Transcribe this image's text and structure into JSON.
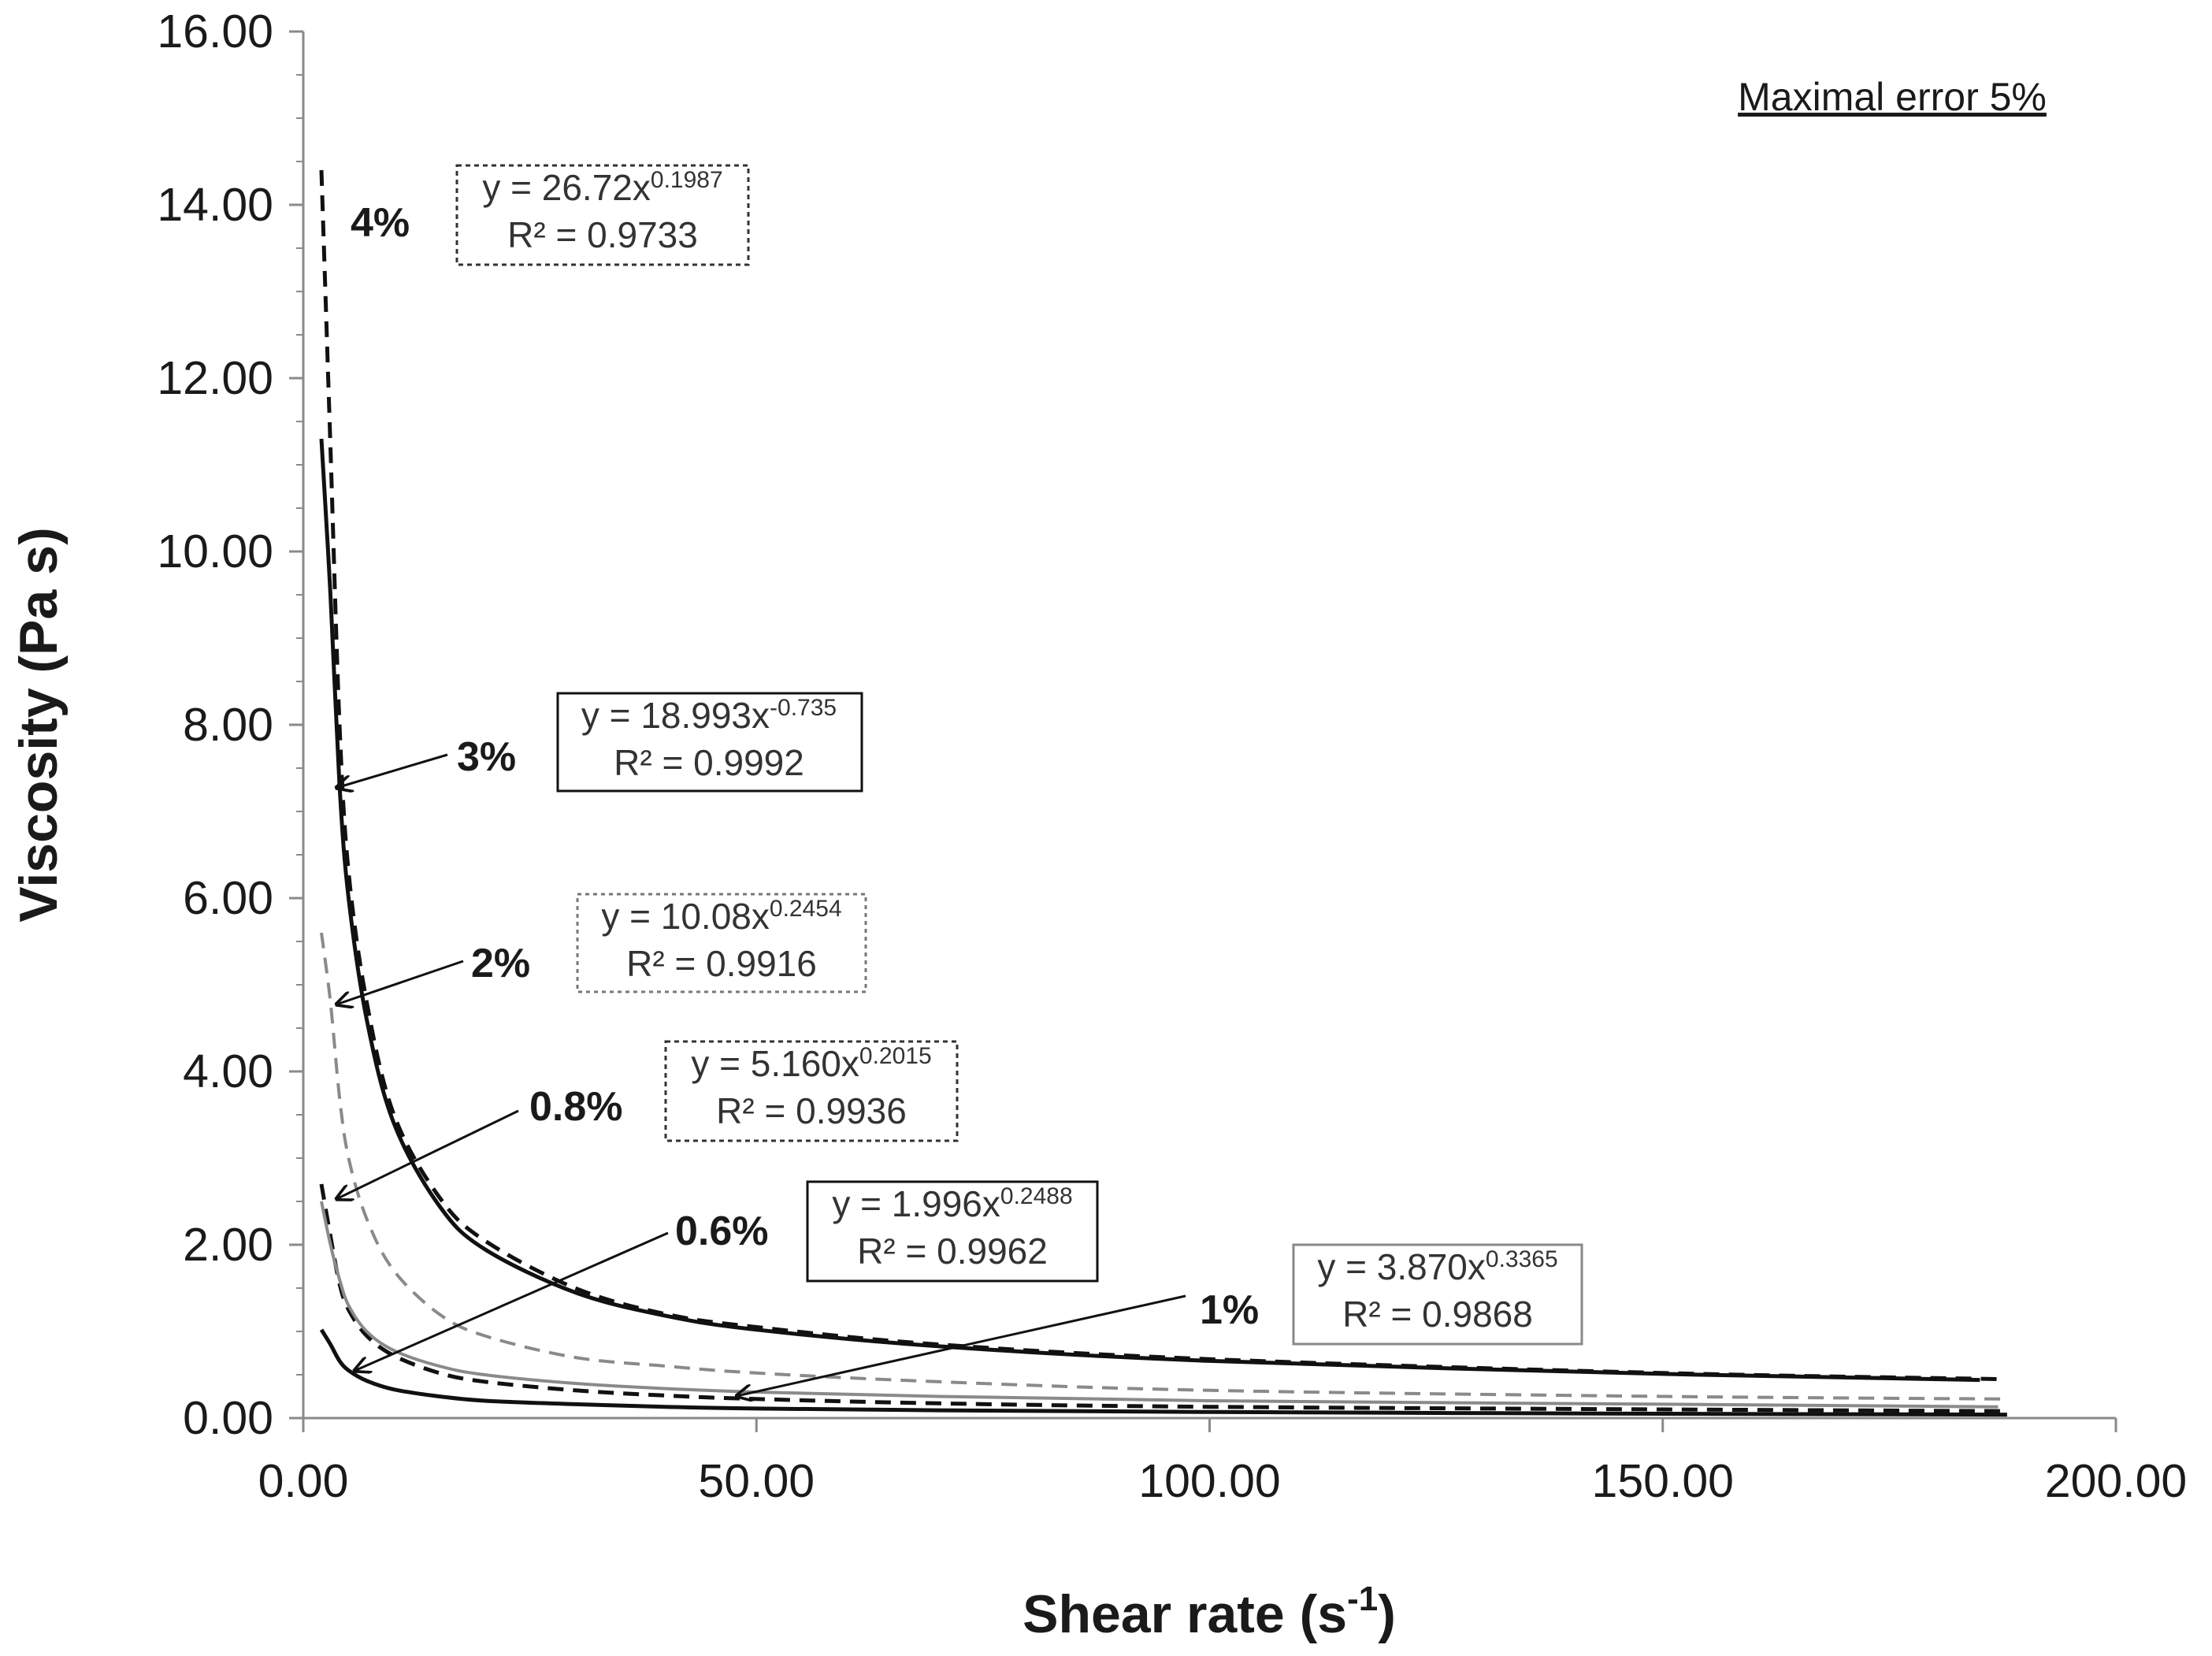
{
  "chart_data": {
    "type": "line",
    "title": "",
    "xlabel": "Shear rate (s",
    "xlabel_superscript": "-1",
    "xlabel_close": ")",
    "ylabel": "Viscosity (Pa s)",
    "xlim": [
      0,
      200
    ],
    "ylim": [
      0,
      16
    ],
    "grid": false,
    "xticks": [
      "0.00",
      "50.00",
      "100.00",
      "150.00",
      "200.00"
    ],
    "xtick_values": [
      0,
      50,
      100,
      150,
      200
    ],
    "yticks": [
      "0.00",
      "2.00",
      "4.00",
      "6.00",
      "8.00",
      "10.00",
      "12.00",
      "14.00",
      "16.00"
    ],
    "ytick_values": [
      0,
      2,
      4,
      6,
      8,
      10,
      12,
      14,
      16
    ],
    "note": "Maximal error 5%",
    "series": [
      {
        "name": "4%",
        "label": "4%",
        "style": "dashed",
        "color": "#111111",
        "x": [
          2,
          3,
          4,
          5,
          7,
          10,
          15,
          20,
          30,
          40,
          50,
          70,
          100,
          150,
          187
        ],
        "y": [
          14.4,
          11.2,
          8.0,
          6.3,
          4.8,
          3.5,
          2.55,
          2.05,
          1.5,
          1.2,
          1.05,
          0.85,
          0.68,
          0.52,
          0.45
        ],
        "equation": "y = 26.72x",
        "exponent": "0.1987",
        "r2": "R² = 0.9733"
      },
      {
        "name": "3%",
        "label": "3%",
        "style": "solid",
        "color": "#111111",
        "x": [
          2,
          3,
          4,
          5,
          7,
          10,
          15,
          20,
          30,
          40,
          50,
          70,
          100,
          150,
          185
        ],
        "y": [
          11.3,
          9.5,
          7.3,
          6.0,
          4.6,
          3.4,
          2.45,
          1.95,
          1.45,
          1.18,
          1.02,
          0.83,
          0.66,
          0.51,
          0.44
        ],
        "equation": "y = 18.993x",
        "exponent": "-0.735",
        "r2": "R² = 0.9992"
      },
      {
        "name": "2%",
        "label": "2%",
        "style": "dashed",
        "color": "#8a8a8a",
        "x": [
          2,
          3,
          4,
          5,
          7,
          10,
          15,
          20,
          30,
          40,
          50,
          70,
          100,
          150,
          188
        ],
        "y": [
          5.6,
          4.8,
          3.7,
          3.0,
          2.3,
          1.7,
          1.2,
          0.95,
          0.7,
          0.6,
          0.52,
          0.42,
          0.32,
          0.25,
          0.22
        ],
        "equation": "y = 10.08x",
        "exponent": "0.2454",
        "r2": "R² = 0.9916"
      },
      {
        "name": "1%",
        "label": "1%",
        "style": "dashed",
        "color": "#111111",
        "x": [
          2,
          3,
          4,
          5,
          7,
          10,
          15,
          20,
          30,
          40,
          50,
          70,
          100,
          150,
          188
        ],
        "y": [
          2.7,
          2.1,
          1.55,
          1.25,
          0.95,
          0.72,
          0.52,
          0.42,
          0.32,
          0.26,
          0.22,
          0.17,
          0.13,
          0.1,
          0.08
        ],
        "equation": "y = 3.870x",
        "exponent": "0.3365",
        "r2": "R² = 0.9868"
      },
      {
        "name": "0.8%",
        "label": "0.8%",
        "style": "solid",
        "color": "#8a8a8a",
        "x": [
          2,
          3,
          4,
          5,
          7,
          10,
          15,
          20,
          30,
          40,
          50,
          70,
          100,
          150,
          187
        ],
        "y": [
          2.5,
          2.0,
          1.6,
          1.3,
          1.0,
          0.78,
          0.6,
          0.5,
          0.4,
          0.34,
          0.3,
          0.25,
          0.2,
          0.16,
          0.13
        ],
        "equation": "y = 5.160x",
        "exponent": "0.2015",
        "r2": "R² = 0.9936"
      },
      {
        "name": "0.6%",
        "label": "0.6%",
        "style": "solid",
        "color": "#111111",
        "x": [
          2,
          3,
          4,
          5,
          7,
          10,
          15,
          20,
          30,
          40,
          50,
          70,
          100,
          150,
          188
        ],
        "y": [
          1.02,
          0.85,
          0.66,
          0.55,
          0.43,
          0.33,
          0.25,
          0.2,
          0.16,
          0.13,
          0.11,
          0.09,
          0.07,
          0.05,
          0.04
        ],
        "equation": "y = 1.996x",
        "exponent": "0.2488",
        "r2": "R² = 0.9962"
      }
    ]
  }
}
